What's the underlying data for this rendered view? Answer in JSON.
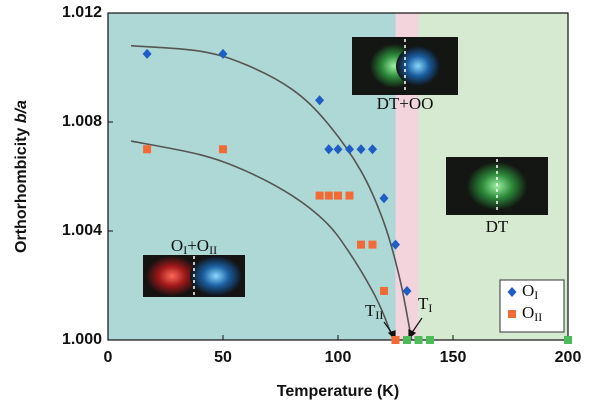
{
  "chart_data": {
    "type": "scatter",
    "x_label": "Temperature (K)",
    "y_label": "Orthorhombicity b/a",
    "xlim": [
      0,
      200
    ],
    "ylim": [
      1.0,
      1.012
    ],
    "xticks": [
      0,
      50,
      100,
      150,
      200
    ],
    "yticks": [
      {
        "value": 1.0,
        "label": "1.000"
      },
      1.004,
      1.008,
      1.012
    ],
    "regions": [
      {
        "x": [
          0,
          125
        ],
        "color": "#aed8d5"
      },
      {
        "x": [
          125,
          135
        ],
        "color": "#f3d4dd"
      },
      {
        "x": [
          135,
          200
        ],
        "color": "#d6ead2"
      }
    ],
    "series": [
      {
        "name": "OI",
        "color": "#1f5cc4",
        "marker": "diamond",
        "x": [
          17,
          50,
          92,
          96,
          100,
          105,
          110,
          115,
          120,
          125,
          130
        ],
        "values": [
          1.0105,
          1.0105,
          1.0088,
          1.007,
          1.007,
          1.007,
          1.007,
          1.007,
          1.0052,
          1.0035,
          1.0018
        ]
      },
      {
        "name": "OII",
        "color": "#f26b36",
        "marker": "square",
        "x": [
          17,
          50,
          92,
          96,
          100,
          105,
          110,
          115,
          120,
          125
        ],
        "values": [
          1.007,
          1.007,
          1.0053,
          1.0053,
          1.0053,
          1.0053,
          1.0035,
          1.0035,
          1.0018,
          1.0
        ]
      },
      {
        "color": "#4cbb5a",
        "marker": "square",
        "x": [
          130,
          135,
          140,
          200
        ],
        "values": [
          1.0,
          1.0,
          1.0,
          1.0
        ]
      },
      {
        "color": "#555555",
        "marker": "line",
        "x": [
          10,
          40,
          60,
          80,
          95,
          110,
          120,
          127,
          132
        ],
        "values": [
          1.0108,
          1.0106,
          1.0101,
          1.0092,
          1.008,
          1.0062,
          1.0043,
          1.0022,
          1.0
        ]
      },
      {
        "color": "#555555",
        "marker": "line",
        "x": [
          10,
          40,
          60,
          80,
          95,
          105,
          115,
          120,
          124
        ],
        "values": [
          1.0073,
          1.0068,
          1.0062,
          1.0053,
          1.0043,
          1.0032,
          1.0018,
          1.0009,
          1.0
        ]
      }
    ],
    "legend": "lower right",
    "annotations": [
      "DT+OO",
      "DT",
      "OI+OII",
      "TII",
      "TI"
    ]
  }
}
